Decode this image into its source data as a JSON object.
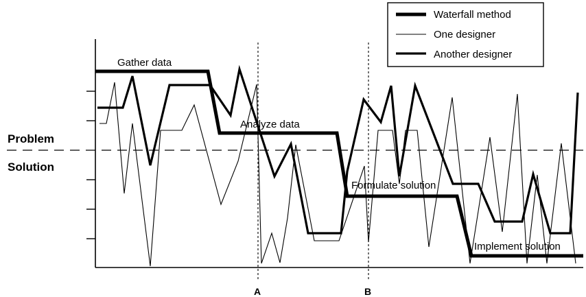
{
  "legend": [
    {
      "label": "Waterfall method",
      "style": "thick"
    },
    {
      "label": "One designer",
      "style": "thin"
    },
    {
      "label": "Another designer",
      "style": "medium"
    }
  ],
  "stages": {
    "gather": "Gather data",
    "analyze": "Analyze data",
    "formulate": "Formulate solution",
    "implement": "Implement solution"
  },
  "sides": {
    "problem": "Problem",
    "solution": "Solution"
  },
  "markers": {
    "a": "A",
    "b": "B"
  },
  "colors": {
    "ink": "#000000",
    "background": "#ffffff"
  }
}
